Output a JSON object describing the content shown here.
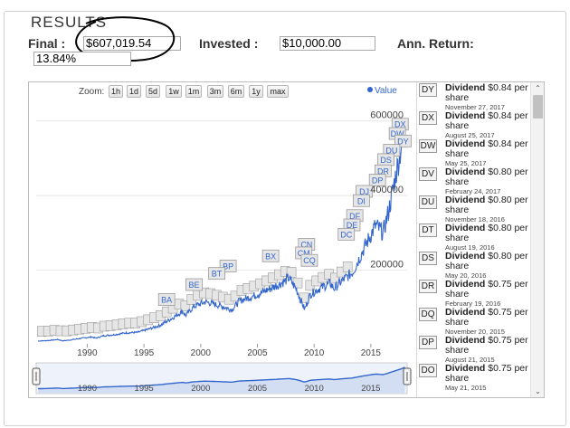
{
  "results": {
    "legend": "RESULTS",
    "final_label": "Final :",
    "final_value": "$607,019.54",
    "invested_label": "Invested :",
    "invested_value": "$10,000.00",
    "annret_label": "Ann. Return:",
    "annret_value": "13.84%"
  },
  "chart": {
    "zoom_label": "Zoom:",
    "zoom_buttons": [
      "1h",
      "1d",
      "5d",
      "1w",
      "1m",
      "3m",
      "6m",
      "1y",
      "max"
    ],
    "legend_series": "Value"
  },
  "chart_data": {
    "type": "line",
    "series": [
      {
        "name": "Value",
        "points": [
          [
            "1985-09",
            10000
          ],
          [
            "1986-06",
            11000
          ],
          [
            "1987-06",
            14000
          ],
          [
            "1987-11",
            10500
          ],
          [
            "1988-06",
            12500
          ],
          [
            "1989-06",
            17000
          ],
          [
            "1990-06",
            21000
          ],
          [
            "1990-10",
            17500
          ],
          [
            "1991-06",
            24000
          ],
          [
            "1992-06",
            27000
          ],
          [
            "1993-06",
            32000
          ],
          [
            "1994-06",
            33000
          ],
          [
            "1995-06",
            42000
          ],
          [
            "1996-06",
            52000
          ],
          [
            "1997-06",
            70000
          ],
          [
            "1998-06",
            90000
          ],
          [
            "1998-09",
            78000
          ],
          [
            "1999-06",
            103000
          ],
          [
            "2000-06",
            115000
          ],
          [
            "2001-09",
            105000
          ],
          [
            "2002-10",
            94000
          ],
          [
            "2003-06",
            118000
          ],
          [
            "2004-06",
            128000
          ],
          [
            "2005-06",
            140000
          ],
          [
            "2006-06",
            155000
          ],
          [
            "2007-06",
            170000
          ],
          [
            "2007-10",
            180000
          ],
          [
            "2008-06",
            150000
          ],
          [
            "2009-03",
            95000
          ],
          [
            "2009-09",
            135000
          ],
          [
            "2010-06",
            150000
          ],
          [
            "2011-06",
            165000
          ],
          [
            "2011-10",
            150000
          ],
          [
            "2012-06",
            170000
          ],
          [
            "2013-06",
            195000
          ],
          [
            "2014-06",
            260000
          ],
          [
            "2015-06",
            320000
          ],
          [
            "2016-02",
            300000
          ],
          [
            "2016-08",
            360000
          ],
          [
            "2017-03",
            450000
          ],
          [
            "2017-09",
            530000
          ],
          [
            "2018-01",
            607000
          ]
        ]
      }
    ],
    "x_ticks": [
      "1990",
      "1995",
      "2000",
      "2005",
      "2010",
      "2015"
    ],
    "y_ticks": [
      "200000",
      "400000",
      "600000"
    ],
    "ylim": [
      0,
      650000
    ],
    "navigator_ticks": [
      "1990",
      "1995",
      "2000",
      "2005",
      "2010",
      "2015"
    ],
    "flags": [
      {
        "label": "DX",
        "x": "2017-08",
        "y": 590000
      },
      {
        "label": "DW",
        "x": "2017-05",
        "y": 565000
      },
      {
        "label": "DY",
        "x": "2017-11",
        "y": 545000
      },
      {
        "label": "DU",
        "x": "2016-11",
        "y": 520000
      },
      {
        "label": "DS",
        "x": "2016-05",
        "y": 495000
      },
      {
        "label": "DR",
        "x": "2016-02",
        "y": 465000
      },
      {
        "label": "DP",
        "x": "2015-08",
        "y": 440000
      },
      {
        "label": "DJ",
        "x": "2014-06",
        "y": 410000
      },
      {
        "label": "DI",
        "x": "2014-03",
        "y": 385000
      },
      {
        "label": "DF",
        "x": "2013-08",
        "y": 345000
      },
      {
        "label": "DE",
        "x": "2013-05",
        "y": 320000
      },
      {
        "label": "DC",
        "x": "2012-11",
        "y": 295000
      },
      {
        "label": "CN",
        "x": "2009-05",
        "y": 268000
      },
      {
        "label": "CM",
        "x": "2009-02",
        "y": 245000
      },
      {
        "label": "CQ",
        "x": "2009-08",
        "y": 225000
      },
      {
        "label": "BX",
        "x": "2006-03",
        "y": 237000
      },
      {
        "label": "BP",
        "x": "2002-06",
        "y": 210000
      },
      {
        "label": "BT",
        "x": "2001-06",
        "y": 190000
      },
      {
        "label": "BE",
        "x": "1999-06",
        "y": 160000
      },
      {
        "label": "BA",
        "x": "1997-01",
        "y": 120000
      }
    ]
  },
  "events": [
    {
      "code": "DY",
      "title": "Dividend",
      "amount": "$0.84 per share",
      "date": "November 27, 2017"
    },
    {
      "code": "DX",
      "title": "Dividend",
      "amount": "$0.84 per share",
      "date": "August 25, 2017"
    },
    {
      "code": "DW",
      "title": "Dividend",
      "amount": "$0.84 per share",
      "date": "May 25, 2017"
    },
    {
      "code": "DV",
      "title": "Dividend",
      "amount": "$0.80 per share",
      "date": "February 24, 2017"
    },
    {
      "code": "DU",
      "title": "Dividend",
      "amount": "$0.80 per share",
      "date": "November 18, 2016"
    },
    {
      "code": "DT",
      "title": "Dividend",
      "amount": "$0.80 per share",
      "date": "August 19, 2016"
    },
    {
      "code": "DS",
      "title": "Dividend",
      "amount": "$0.80 per share",
      "date": "May 20, 2016"
    },
    {
      "code": "DR",
      "title": "Dividend",
      "amount": "$0.75 per share",
      "date": "February 19, 2016"
    },
    {
      "code": "DQ",
      "title": "Dividend",
      "amount": "$0.75 per share",
      "date": "November 20, 2015"
    },
    {
      "code": "DP",
      "title": "Dividend",
      "amount": "$0.75 per share",
      "date": "August 21, 2015"
    },
    {
      "code": "DO",
      "title": "Dividend",
      "amount": "$0.75 per share",
      "date": "May 21, 2015"
    }
  ],
  "colors": {
    "line": "#3366cc",
    "annotation_circle": "#000000",
    "flag_fill": "#e6e6e6",
    "flag_text": "#3366cc"
  }
}
